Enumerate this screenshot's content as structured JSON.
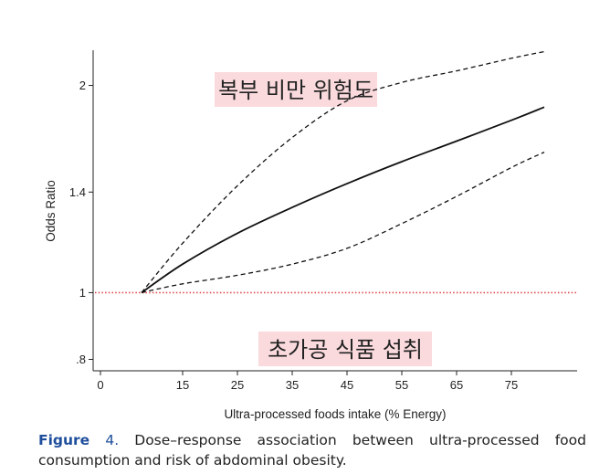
{
  "chart_data": {
    "type": "line",
    "xlabel": "Ultra-processed foods intake (% Energy)",
    "ylabel": "Odds Ratio",
    "xlim": [
      0,
      86
    ],
    "ylim": [
      0.77,
      2.25
    ],
    "y_scale": "log",
    "x_ticks": [
      0,
      15,
      25,
      35,
      45,
      55,
      65,
      75
    ],
    "y_ticks": [
      0.8,
      1,
      1.4,
      2
    ],
    "y_tick_labels": [
      ".8",
      "1",
      "1.4",
      "2"
    ],
    "x_tick_labels": [
      "0",
      "15",
      "25",
      "35",
      "45",
      "55",
      "65",
      "75"
    ],
    "reference_line": {
      "y": 1,
      "style": "dotted",
      "color": "#e0484f"
    },
    "annotations": [
      {
        "text": "복부 비만 위험도",
        "position": "top-center",
        "highlight": "#fadadd"
      },
      {
        "text": "초가공 식품 섭취",
        "position": "bottom-center",
        "highlight": "#fadadd"
      }
    ],
    "series": [
      {
        "name": "Odds ratio",
        "style": "solid",
        "x": [
          7.5,
          15,
          25,
          35,
          45,
          55,
          65,
          75,
          81
        ],
        "values": [
          1.0,
          1.1,
          1.22,
          1.33,
          1.44,
          1.55,
          1.66,
          1.78,
          1.86
        ]
      },
      {
        "name": "Upper 95% CI",
        "style": "dashed",
        "x": [
          7.5,
          15,
          25,
          35,
          45,
          55,
          65,
          75,
          81
        ],
        "values": [
          1.0,
          1.18,
          1.43,
          1.68,
          1.9,
          2.02,
          2.1,
          2.19,
          2.24
        ]
      },
      {
        "name": "Lower 95% CI",
        "style": "dashed",
        "x": [
          7.5,
          15,
          25,
          35,
          45,
          55,
          65,
          75,
          81
        ],
        "values": [
          1.0,
          1.03,
          1.06,
          1.1,
          1.16,
          1.26,
          1.38,
          1.52,
          1.6
        ]
      }
    ]
  },
  "caption": {
    "label": "Figure",
    "number": "4.",
    "text": " Dose–response association between ultra-processed food consumption and risk of abdominal obesity."
  }
}
